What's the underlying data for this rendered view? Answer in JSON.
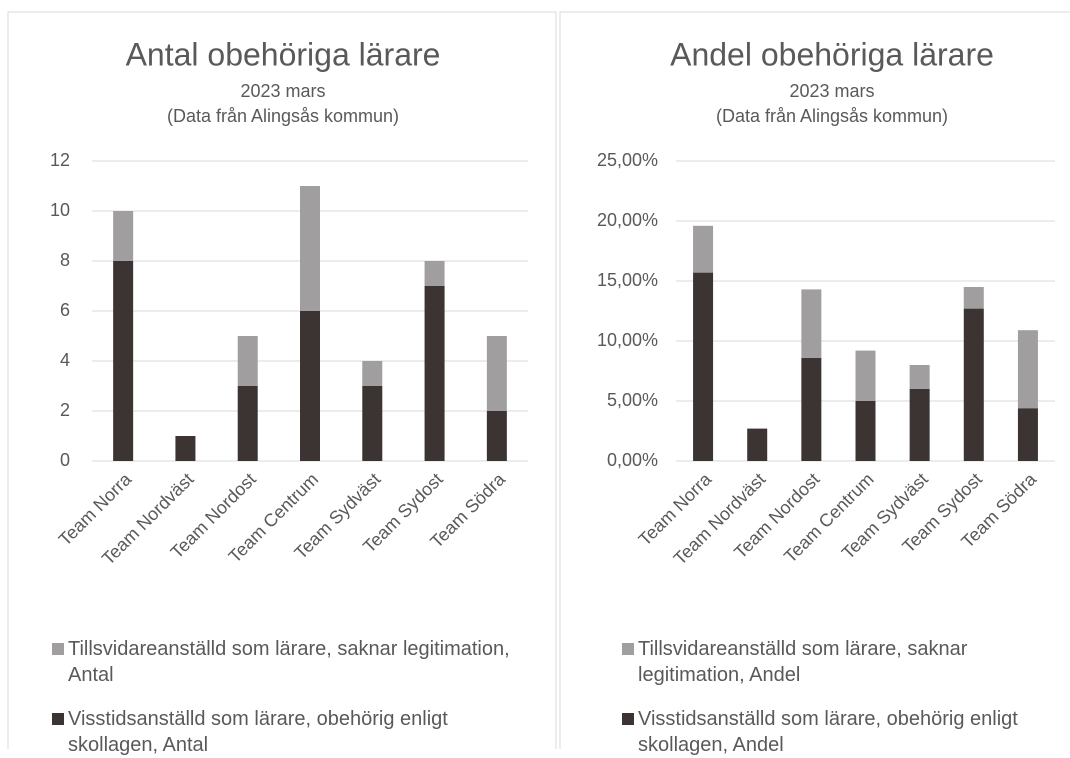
{
  "chart_data": [
    {
      "type": "bar",
      "stacked": true,
      "title": "Antal obehöriga lärare",
      "subtitle": "2023 mars",
      "note": "(Data från Alingsås kommun)",
      "categories": [
        "Team Norra",
        "Team Nordväst",
        "Team Nordost",
        "Team Centrum",
        "Team Sydväst",
        "Team Sydost",
        "Team Södra"
      ],
      "series": [
        {
          "name": "Visstidsanställd som lärare, obehörig enligt skollagen, Antal",
          "color": "#3b3432",
          "values": [
            8,
            1,
            3,
            6,
            3,
            7,
            2
          ]
        },
        {
          "name": "Tillsvidareanställd som lärare, saknar legitimation, Antal",
          "color": "#a09e9e",
          "values": [
            2,
            0,
            2,
            5,
            1,
            1,
            3
          ]
        }
      ],
      "ylim": [
        0,
        12
      ],
      "yticks": [
        0,
        2,
        4,
        6,
        8,
        10,
        12
      ],
      "grid": true
    },
    {
      "type": "bar",
      "stacked": true,
      "title": "Andel obehöriga lärare",
      "subtitle": "2023 mars",
      "note": "(Data från Alingsås kommun)",
      "categories": [
        "Team Norra",
        "Team Nordväst",
        "Team Nordost",
        "Team Centrum",
        "Team Sydväst",
        "Team Sydost",
        "Team Södra"
      ],
      "series": [
        {
          "name": "Visstidsanställd som lärare, obehörig enligt skollagen, Andel",
          "color": "#3b3432",
          "values": [
            15.7,
            2.7,
            8.6,
            5.0,
            6.0,
            12.7,
            4.4
          ]
        },
        {
          "name": "Tillsvidareanställd som lärare, saknar legitimation, Andel",
          "color": "#a09e9e",
          "values": [
            3.9,
            0,
            5.7,
            4.2,
            2.0,
            1.8,
            6.5
          ]
        }
      ],
      "ylim": [
        0,
        25
      ],
      "yticks": [
        {
          "value": 0,
          "label": "0,00%"
        },
        {
          "value": 5,
          "label": "5,00%"
        },
        {
          "value": 10,
          "label": "10,00%"
        },
        {
          "value": 15,
          "label": "15,00%"
        },
        {
          "value": 20,
          "label": "20,00%"
        },
        {
          "value": 25,
          "label": "25,00%"
        }
      ],
      "grid": true
    }
  ]
}
